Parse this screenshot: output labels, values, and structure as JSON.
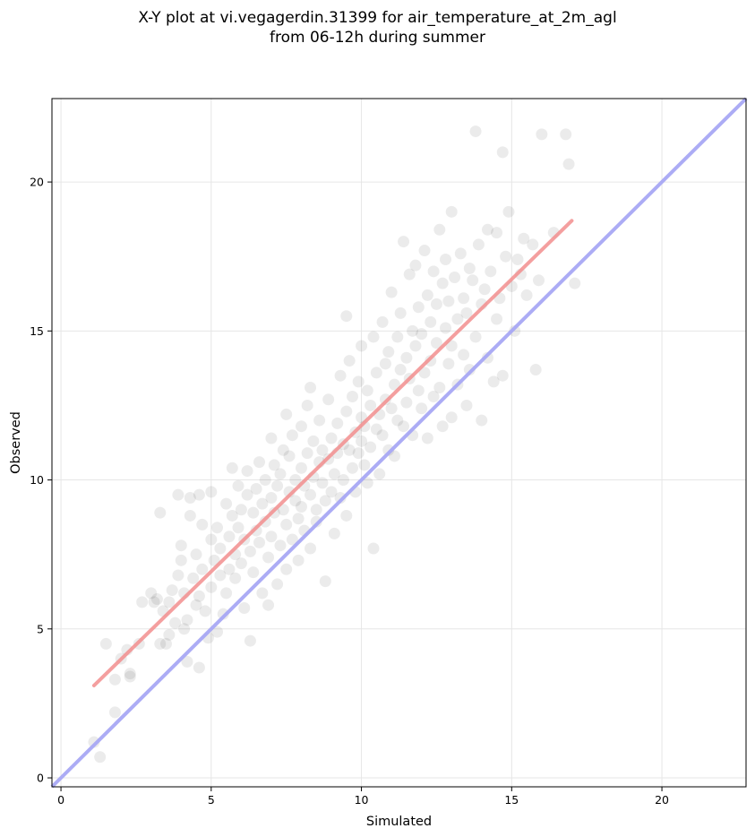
{
  "chart_data": {
    "type": "scatter",
    "title_line1": "X-Y plot at vi.vegagerdin.31399 for air_temperature_at_2m_agl",
    "title_line2": "from 06-12h during summer",
    "xlabel": "Simulated",
    "ylabel": "Observed",
    "xlim": [
      -0.3,
      22.8
    ],
    "ylim": [
      -0.3,
      22.8
    ],
    "xticks": [
      0,
      5,
      10,
      15,
      20
    ],
    "yticks": [
      0,
      5,
      10,
      15,
      20
    ],
    "grid": true,
    "point_color": "#000000",
    "point_alpha": 0.08,
    "points": [
      [
        1.1,
        1.2
      ],
      [
        1.3,
        0.7
      ],
      [
        1.5,
        4.5
      ],
      [
        1.8,
        2.2
      ],
      [
        1.8,
        3.3
      ],
      [
        2.0,
        4.0
      ],
      [
        2.2,
        4.3
      ],
      [
        2.3,
        3.5
      ],
      [
        2.3,
        3.4
      ],
      [
        2.6,
        4.5
      ],
      [
        2.7,
        5.9
      ],
      [
        3.0,
        6.2
      ],
      [
        3.1,
        5.9
      ],
      [
        3.2,
        6.0
      ],
      [
        3.3,
        8.9
      ],
      [
        3.3,
        4.5
      ],
      [
        3.4,
        5.6
      ],
      [
        3.5,
        4.5
      ],
      [
        3.6,
        5.9
      ],
      [
        3.6,
        4.8
      ],
      [
        3.7,
        6.3
      ],
      [
        3.8,
        5.2
      ],
      [
        3.9,
        6.8
      ],
      [
        3.9,
        9.5
      ],
      [
        4.0,
        7.3
      ],
      [
        4.0,
        7.8
      ],
      [
        4.1,
        6.2
      ],
      [
        4.1,
        5.0
      ],
      [
        4.2,
        3.9
      ],
      [
        4.2,
        5.3
      ],
      [
        4.3,
        8.8
      ],
      [
        4.3,
        9.4
      ],
      [
        4.4,
        6.7
      ],
      [
        4.5,
        7.5
      ],
      [
        4.5,
        5.8
      ],
      [
        4.6,
        6.1
      ],
      [
        4.6,
        9.5
      ],
      [
        4.6,
        3.7
      ],
      [
        4.7,
        7.0
      ],
      [
        4.7,
        8.5
      ],
      [
        4.8,
        5.6
      ],
      [
        4.9,
        4.7
      ],
      [
        5.0,
        9.6
      ],
      [
        5.0,
        6.4
      ],
      [
        5.0,
        8.0
      ],
      [
        5.1,
        7.3
      ],
      [
        5.2,
        4.9
      ],
      [
        5.2,
        8.4
      ],
      [
        5.3,
        6.8
      ],
      [
        5.3,
        7.7
      ],
      [
        5.4,
        5.5
      ],
      [
        5.5,
        9.2
      ],
      [
        5.5,
        6.2
      ],
      [
        5.6,
        8.1
      ],
      [
        5.6,
        7.0
      ],
      [
        5.7,
        10.4
      ],
      [
        5.7,
        8.8
      ],
      [
        5.8,
        7.5
      ],
      [
        5.8,
        6.7
      ],
      [
        5.9,
        9.8
      ],
      [
        5.9,
        8.4
      ],
      [
        6.0,
        7.2
      ],
      [
        6.0,
        9.0
      ],
      [
        6.1,
        5.7
      ],
      [
        6.1,
        8.0
      ],
      [
        6.2,
        9.5
      ],
      [
        6.2,
        10.3
      ],
      [
        6.3,
        7.6
      ],
      [
        6.3,
        4.6
      ],
      [
        6.4,
        8.9
      ],
      [
        6.4,
        6.9
      ],
      [
        6.5,
        9.7
      ],
      [
        6.5,
        8.3
      ],
      [
        6.6,
        10.6
      ],
      [
        6.6,
        7.9
      ],
      [
        6.7,
        9.2
      ],
      [
        6.7,
        6.2
      ],
      [
        6.8,
        8.6
      ],
      [
        6.8,
        10.0
      ],
      [
        6.9,
        5.8
      ],
      [
        6.9,
        7.4
      ],
      [
        7.0,
        9.4
      ],
      [
        7.0,
        11.4
      ],
      [
        7.0,
        8.1
      ],
      [
        7.1,
        10.5
      ],
      [
        7.1,
        8.9
      ],
      [
        7.2,
        9.8
      ],
      [
        7.2,
        6.5
      ],
      [
        7.3,
        7.8
      ],
      [
        7.3,
        10.2
      ],
      [
        7.4,
        11.0
      ],
      [
        7.4,
        9.0
      ],
      [
        7.5,
        8.5
      ],
      [
        7.5,
        12.2
      ],
      [
        7.5,
        7.0
      ],
      [
        7.6,
        9.6
      ],
      [
        7.6,
        10.8
      ],
      [
        7.7,
        8.0
      ],
      [
        7.7,
        11.5
      ],
      [
        7.8,
        9.3
      ],
      [
        7.8,
        10.0
      ],
      [
        7.9,
        8.7
      ],
      [
        7.9,
        7.3
      ],
      [
        8.0,
        10.4
      ],
      [
        8.0,
        11.8
      ],
      [
        8.0,
        9.1
      ],
      [
        8.1,
        9.8
      ],
      [
        8.1,
        8.3
      ],
      [
        8.2,
        10.9
      ],
      [
        8.2,
        12.5
      ],
      [
        8.3,
        9.5
      ],
      [
        8.3,
        7.7
      ],
      [
        8.3,
        13.1
      ],
      [
        8.4,
        10.1
      ],
      [
        8.4,
        11.3
      ],
      [
        8.5,
        9.0
      ],
      [
        8.5,
        8.6
      ],
      [
        8.6,
        10.6
      ],
      [
        8.6,
        12.0
      ],
      [
        8.7,
        9.9
      ],
      [
        8.7,
        11.0
      ],
      [
        8.8,
        9.3
      ],
      [
        8.8,
        6.6
      ],
      [
        8.9,
        10.7
      ],
      [
        8.9,
        12.7
      ],
      [
        9.0,
        11.4
      ],
      [
        9.0,
        9.6
      ],
      [
        9.1,
        10.2
      ],
      [
        9.1,
        8.2
      ],
      [
        9.2,
        11.9
      ],
      [
        9.2,
        10.9
      ],
      [
        9.3,
        9.4
      ],
      [
        9.3,
        13.5
      ],
      [
        9.4,
        11.2
      ],
      [
        9.4,
        10.0
      ],
      [
        9.5,
        12.3
      ],
      [
        9.5,
        15.5
      ],
      [
        9.5,
        8.8
      ],
      [
        9.6,
        11.0
      ],
      [
        9.6,
        14.0
      ],
      [
        9.7,
        10.4
      ],
      [
        9.7,
        12.8
      ],
      [
        9.8,
        11.6
      ],
      [
        9.8,
        9.6
      ],
      [
        9.9,
        13.3
      ],
      [
        9.9,
        10.9
      ],
      [
        10.0,
        11.3
      ],
      [
        10.0,
        14.5
      ],
      [
        10.0,
        12.1
      ],
      [
        10.1,
        10.5
      ],
      [
        10.1,
        11.8
      ],
      [
        10.2,
        13.0
      ],
      [
        10.2,
        9.9
      ],
      [
        10.3,
        12.5
      ],
      [
        10.3,
        11.1
      ],
      [
        10.4,
        14.8
      ],
      [
        10.4,
        7.7
      ],
      [
        10.5,
        11.7
      ],
      [
        10.5,
        13.6
      ],
      [
        10.6,
        12.2
      ],
      [
        10.6,
        10.2
      ],
      [
        10.7,
        15.3
      ],
      [
        10.7,
        11.5
      ],
      [
        10.8,
        13.9
      ],
      [
        10.8,
        12.7
      ],
      [
        10.9,
        11.0
      ],
      [
        10.9,
        14.3
      ],
      [
        11.0,
        12.4
      ],
      [
        11.0,
        16.3
      ],
      [
        11.1,
        13.2
      ],
      [
        11.1,
        10.8
      ],
      [
        11.2,
        14.8
      ],
      [
        11.2,
        12.0
      ],
      [
        11.3,
        15.6
      ],
      [
        11.3,
        13.7
      ],
      [
        11.4,
        11.8
      ],
      [
        11.4,
        18.0
      ],
      [
        11.5,
        14.1
      ],
      [
        11.5,
        12.6
      ],
      [
        11.6,
        16.9
      ],
      [
        11.6,
        13.4
      ],
      [
        11.7,
        15.0
      ],
      [
        11.7,
        11.5
      ],
      [
        11.8,
        14.5
      ],
      [
        11.8,
        17.2
      ],
      [
        11.9,
        13.0
      ],
      [
        11.9,
        15.8
      ],
      [
        12.0,
        12.4
      ],
      [
        12.0,
        14.9
      ],
      [
        12.1,
        17.7
      ],
      [
        12.1,
        13.6
      ],
      [
        12.2,
        16.2
      ],
      [
        12.2,
        11.4
      ],
      [
        12.3,
        15.3
      ],
      [
        12.3,
        14.0
      ],
      [
        12.4,
        17.0
      ],
      [
        12.4,
        12.8
      ],
      [
        12.5,
        15.9
      ],
      [
        12.5,
        14.6
      ],
      [
        12.6,
        18.4
      ],
      [
        12.6,
        13.1
      ],
      [
        12.7,
        16.6
      ],
      [
        12.7,
        11.8
      ],
      [
        12.8,
        15.1
      ],
      [
        12.8,
        17.4
      ],
      [
        12.9,
        13.9
      ],
      [
        12.9,
        16.0
      ],
      [
        13.0,
        14.5
      ],
      [
        13.0,
        19.0
      ],
      [
        13.0,
        12.1
      ],
      [
        13.1,
        16.8
      ],
      [
        13.2,
        15.4
      ],
      [
        13.2,
        13.2
      ],
      [
        13.3,
        17.6
      ],
      [
        13.4,
        14.2
      ],
      [
        13.4,
        16.1
      ],
      [
        13.5,
        12.5
      ],
      [
        13.5,
        15.6
      ],
      [
        13.6,
        17.1
      ],
      [
        13.6,
        13.7
      ],
      [
        13.7,
        16.7
      ],
      [
        13.8,
        14.8
      ],
      [
        13.8,
        21.7
      ],
      [
        13.9,
        17.9
      ],
      [
        14.0,
        15.9
      ],
      [
        14.0,
        12.0
      ],
      [
        14.1,
        16.4
      ],
      [
        14.2,
        14.1
      ],
      [
        14.2,
        18.4
      ],
      [
        14.3,
        17.0
      ],
      [
        14.4,
        13.3
      ],
      [
        14.5,
        15.4
      ],
      [
        14.5,
        18.3
      ],
      [
        14.6,
        16.1
      ],
      [
        14.7,
        21.0
      ],
      [
        14.7,
        13.5
      ],
      [
        14.8,
        17.5
      ],
      [
        14.9,
        19.0
      ],
      [
        15.0,
        16.5
      ],
      [
        15.1,
        15.0
      ],
      [
        15.2,
        17.4
      ],
      [
        15.3,
        16.9
      ],
      [
        15.4,
        18.1
      ],
      [
        15.5,
        16.2
      ],
      [
        15.7,
        17.9
      ],
      [
        15.8,
        13.7
      ],
      [
        15.9,
        16.7
      ],
      [
        16.0,
        21.6
      ],
      [
        16.4,
        18.3
      ],
      [
        16.8,
        21.6
      ],
      [
        16.9,
        20.6
      ],
      [
        17.1,
        16.6
      ]
    ],
    "fit_line": {
      "color": "#f28e8e",
      "x": [
        1.1,
        17.0
      ],
      "y": [
        3.1,
        18.7
      ]
    },
    "identity_line": {
      "color": "#a8a8f4"
    }
  }
}
